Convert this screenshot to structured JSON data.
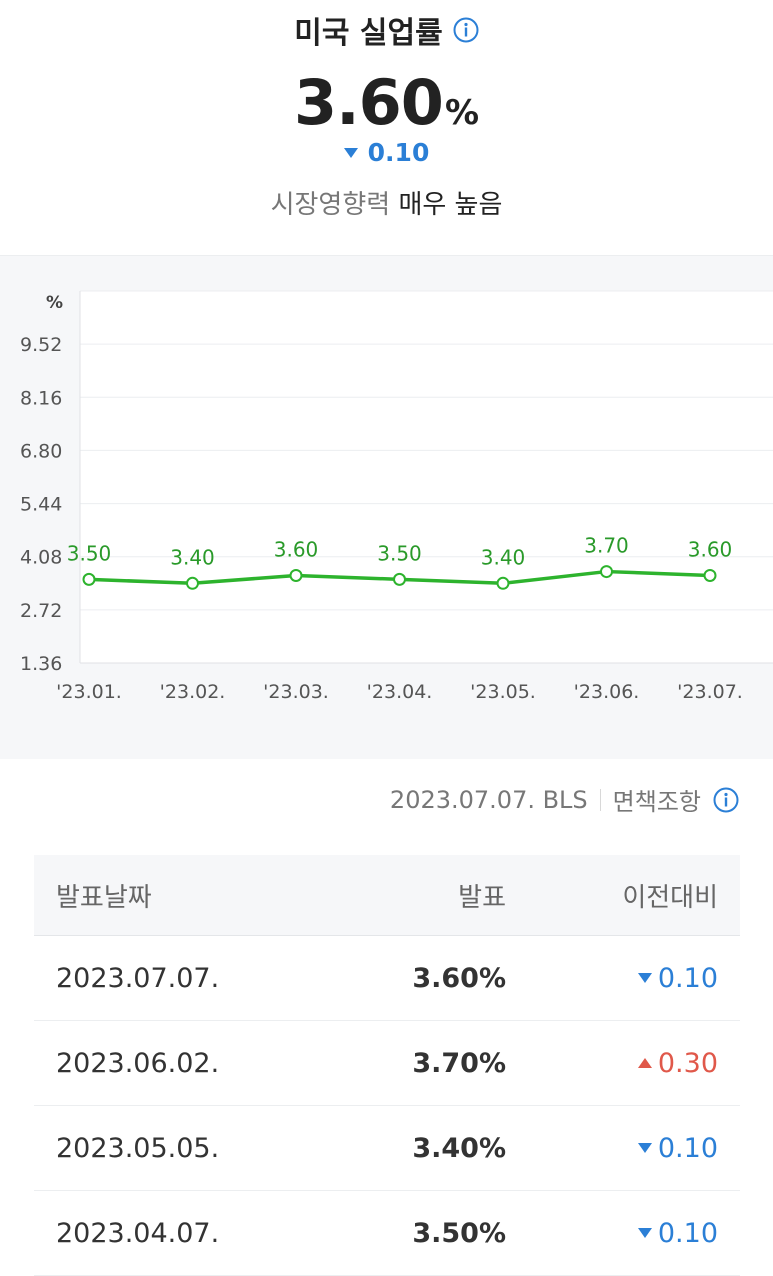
{
  "header": {
    "title": "미국 실업률",
    "value": "3.60",
    "unit": "%",
    "change": "0.10",
    "change_direction": "down",
    "impact_label": "시장영향력",
    "impact_value": "매우 높음"
  },
  "colors": {
    "line": "#2db32d",
    "down": "#2b7fd6",
    "up": "#e0584a"
  },
  "chart_data": {
    "type": "line",
    "ylabel": "%",
    "yticks": [
      "9.52",
      "8.16",
      "6.80",
      "5.44",
      "4.08",
      "2.72",
      "1.36"
    ],
    "ylim": [
      1.36,
      10.88
    ],
    "categories": [
      "'23.01.",
      "'23.02.",
      "'23.03.",
      "'23.04.",
      "'23.05.",
      "'23.06.",
      "'23.07."
    ],
    "series": [
      {
        "values": [
          3.5,
          3.4,
          3.6,
          3.5,
          3.4,
          3.7,
          3.6
        ],
        "labels": [
          "3.50",
          "3.40",
          "3.60",
          "3.50",
          "3.40",
          "3.70",
          "3.60"
        ]
      }
    ],
    "grid": true
  },
  "meta": {
    "date_source": "2023.07.07. BLS",
    "disclaimer": "면책조항"
  },
  "table": {
    "headers": [
      "발표날짜",
      "발표",
      "이전대비"
    ],
    "rows": [
      {
        "date": "2023.07.07.",
        "value": "3.60%",
        "change": "0.10",
        "direction": "down"
      },
      {
        "date": "2023.06.02.",
        "value": "3.70%",
        "change": "0.30",
        "direction": "up"
      },
      {
        "date": "2023.05.05.",
        "value": "3.40%",
        "change": "0.10",
        "direction": "down"
      },
      {
        "date": "2023.04.07.",
        "value": "3.50%",
        "change": "0.10",
        "direction": "down"
      }
    ]
  }
}
